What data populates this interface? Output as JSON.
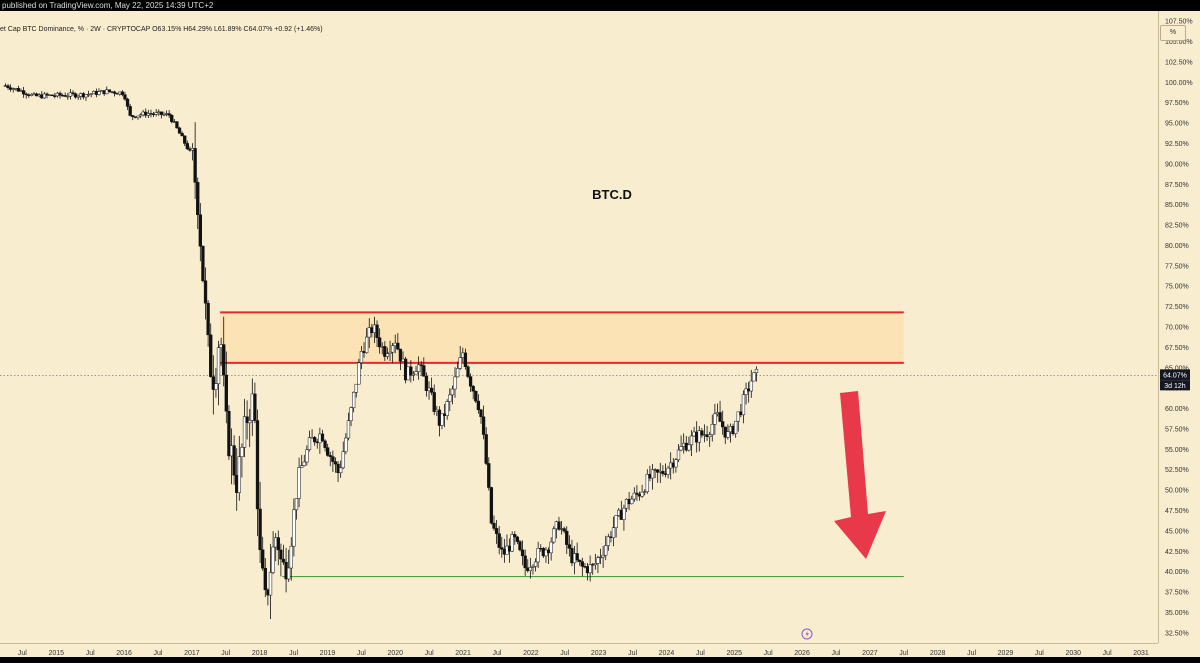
{
  "header": {
    "published_text": "published on TradingView.com, May 22, 2025 14:39 UTC+2",
    "legend_text": "et Cap BTC Dominance, % · 2W · CRYPTOCAP  O63.15%  H64.29%  L61.89%  C64.07%  +0.92 (+1.46%)",
    "unit_button": "%"
  },
  "price_marker": {
    "value": "64.07%",
    "countdown": "3d 12h"
  },
  "colors": {
    "background": "#f9edd0",
    "zone_fill": "#fbe3b6",
    "zone_line": "#e8272d",
    "support_line": "#4ca33b",
    "arrow": "#e8394a",
    "candle": "#111111"
  },
  "icons": {
    "event": "lightning-icon"
  },
  "chart_data": {
    "type": "candlestick",
    "title": "BTC.D",
    "xlabel": "",
    "ylabel": "",
    "ylim": [
      31.25,
      108.75
    ],
    "x_range": [
      "2014-03",
      "2031-04"
    ],
    "y_ticks": [
      "32.50%",
      "35.00%",
      "37.50%",
      "40.00%",
      "42.50%",
      "45.00%",
      "47.50%",
      "50.00%",
      "52.50%",
      "55.00%",
      "57.50%",
      "60.00%",
      "62.50%",
      "65.00%",
      "67.50%",
      "70.00%",
      "72.50%",
      "75.00%",
      "77.50%",
      "80.00%",
      "82.50%",
      "85.00%",
      "87.50%",
      "90.00%",
      "92.50%",
      "95.00%",
      "97.50%",
      "100.00%",
      "102.50%",
      "105.00%",
      "107.50%"
    ],
    "x_ticks": [
      {
        "label": "Jul",
        "t": 2014.5
      },
      {
        "label": "2015",
        "t": 2015.0
      },
      {
        "label": "Jul",
        "t": 2015.5
      },
      {
        "label": "2016",
        "t": 2016.0
      },
      {
        "label": "Jul",
        "t": 2016.5
      },
      {
        "label": "2017",
        "t": 2017.0
      },
      {
        "label": "Jul",
        "t": 2017.5
      },
      {
        "label": "2018",
        "t": 2018.0
      },
      {
        "label": "Jul",
        "t": 2018.5
      },
      {
        "label": "2019",
        "t": 2019.0
      },
      {
        "label": "Jul",
        "t": 2019.5
      },
      {
        "label": "2020",
        "t": 2020.0
      },
      {
        "label": "Jul",
        "t": 2020.5
      },
      {
        "label": "2021",
        "t": 2021.0
      },
      {
        "label": "Jul",
        "t": 2021.5
      },
      {
        "label": "2022",
        "t": 2022.0
      },
      {
        "label": "Jul",
        "t": 2022.5
      },
      {
        "label": "2023",
        "t": 2023.0
      },
      {
        "label": "Jul",
        "t": 2023.5
      },
      {
        "label": "2024",
        "t": 2024.0
      },
      {
        "label": "Jul",
        "t": 2024.5
      },
      {
        "label": "2025",
        "t": 2025.0
      },
      {
        "label": "Jul",
        "t": 2025.5
      },
      {
        "label": "2026",
        "t": 2026.0
      },
      {
        "label": "Jul",
        "t": 2026.5
      },
      {
        "label": "2027",
        "t": 2027.0
      },
      {
        "label": "Jul",
        "t": 2027.5
      },
      {
        "label": "2028",
        "t": 2028.0
      },
      {
        "label": "Jul",
        "t": 2028.5
      },
      {
        "label": "2029",
        "t": 2029.0
      },
      {
        "label": "Jul",
        "t": 2029.5
      },
      {
        "label": "2030",
        "t": 2030.0
      },
      {
        "label": "Jul",
        "t": 2030.5
      },
      {
        "label": "2031",
        "t": 2031.0
      }
    ],
    "current_value": 64.07,
    "resistance_zone": {
      "top": 71.8,
      "bottom": 65.6,
      "start": "2017-06",
      "end": "2027-07"
    },
    "support_line": {
      "value": 39.4,
      "start": "2018-05",
      "end": "2027-07"
    },
    "price_path": [
      [
        "2014-04",
        99.6
      ],
      [
        "2014-07",
        98.9
      ],
      [
        "2014-09",
        98.3
      ],
      [
        "2015-01",
        98.4
      ],
      [
        "2015-06",
        98.5
      ],
      [
        "2015-10",
        98.9
      ],
      [
        "2016-01",
        98.7
      ],
      [
        "2016-02",
        95.8
      ],
      [
        "2016-05",
        96.2
      ],
      [
        "2016-09",
        96.0
      ],
      [
        "2017-01",
        91.0
      ],
      [
        "2017-02",
        86.0
      ],
      [
        "2017-03",
        76.0
      ],
      [
        "2017-04",
        66.0
      ],
      [
        "2017-05",
        63.5
      ],
      [
        "2017-06",
        70.0
      ],
      [
        "2017-07",
        58.0
      ],
      [
        "2017-09",
        51.0
      ],
      [
        "2017-11",
        60.0
      ],
      [
        "2017-12",
        61.0
      ],
      [
        "2018-01",
        42.0
      ],
      [
        "2018-02",
        36.0
      ],
      [
        "2018-03",
        41.0
      ],
      [
        "2018-04",
        45.0
      ],
      [
        "2018-05",
        40.0
      ],
      [
        "2018-06",
        42.0
      ],
      [
        "2018-08",
        52.0
      ],
      [
        "2018-10",
        56.0
      ],
      [
        "2018-12",
        57.0
      ],
      [
        "2019-01",
        55.0
      ],
      [
        "2019-03",
        52.0
      ],
      [
        "2019-05",
        59.0
      ],
      [
        "2019-07",
        67.0
      ],
      [
        "2019-09",
        70.0
      ],
      [
        "2019-11",
        67.0
      ],
      [
        "2020-01",
        68.5
      ],
      [
        "2020-03",
        64.0
      ],
      [
        "2020-05",
        65.5
      ],
      [
        "2020-07",
        62.0
      ],
      [
        "2020-09",
        58.0
      ],
      [
        "2020-11",
        62.0
      ],
      [
        "2021-01",
        67.0
      ],
      [
        "2021-02",
        64.0
      ],
      [
        "2021-04",
        60.0
      ],
      [
        "2021-05",
        54.0
      ],
      [
        "2021-06",
        46.0
      ],
      [
        "2021-08",
        42.0
      ],
      [
        "2021-10",
        44.0
      ],
      [
        "2021-12",
        40.5
      ],
      [
        "2022-02",
        42.0
      ],
      [
        "2022-04",
        43.0
      ],
      [
        "2022-06",
        46.0
      ],
      [
        "2022-08",
        42.0
      ],
      [
        "2022-10",
        40.5
      ],
      [
        "2022-12",
        40.5
      ],
      [
        "2023-02",
        43.0
      ],
      [
        "2023-04",
        46.0
      ],
      [
        "2023-06",
        48.5
      ],
      [
        "2023-08",
        49.5
      ],
      [
        "2023-10",
        51.5
      ],
      [
        "2023-12",
        52.0
      ],
      [
        "2024-02",
        53.5
      ],
      [
        "2024-04",
        55.5
      ],
      [
        "2024-06",
        56.5
      ],
      [
        "2024-08",
        57.0
      ],
      [
        "2024-10",
        59.0
      ],
      [
        "2024-12",
        56.5
      ],
      [
        "2025-01",
        58.0
      ],
      [
        "2025-03",
        61.5
      ],
      [
        "2025-04",
        63.5
      ],
      [
        "2025-05",
        64.07
      ]
    ],
    "annotations": [
      "BTC.D"
    ]
  }
}
